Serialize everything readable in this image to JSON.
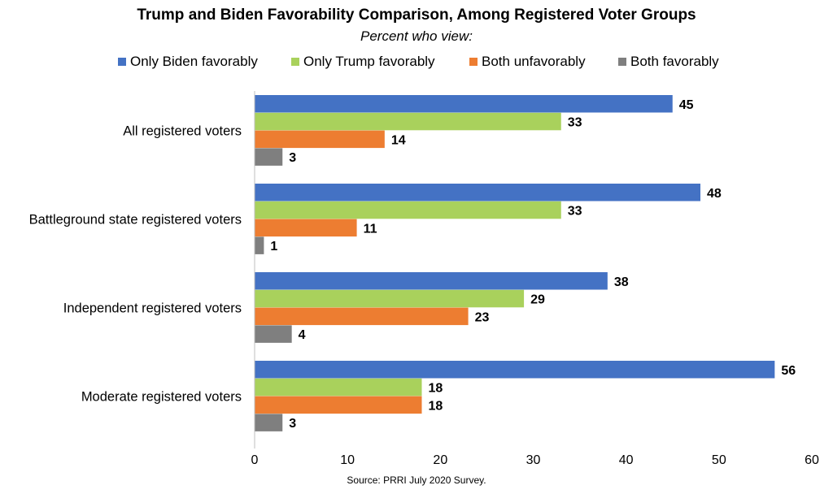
{
  "chart_data": {
    "type": "bar",
    "orientation": "horizontal",
    "title": "Trump and Biden Favorability Comparison, Among Registered Voter Groups",
    "subtitle": "Percent who view:",
    "source": "Source: PRRI July 2020 Survey.",
    "categories": [
      "All registered voters",
      "Battleground state registered voters",
      "Independent registered voters",
      "Moderate registered voters"
    ],
    "series": [
      {
        "name": "Only Biden favorably",
        "color": "#4472C4",
        "values": [
          45,
          48,
          38,
          56
        ]
      },
      {
        "name": "Only Trump favorably",
        "color": "#A9D15C",
        "values": [
          33,
          33,
          29,
          18
        ]
      },
      {
        "name": "Both unfavorably",
        "color": "#ED7D31",
        "values": [
          14,
          11,
          23,
          18
        ]
      },
      {
        "name": "Both favorably",
        "color": "#7F7F7F",
        "values": [
          3,
          1,
          4,
          3
        ]
      }
    ],
    "xlim": [
      0,
      60
    ],
    "xticks": [
      0,
      10,
      20,
      30,
      40,
      50,
      60
    ],
    "grid": false,
    "legend_position": "top",
    "data_labels": true
  }
}
